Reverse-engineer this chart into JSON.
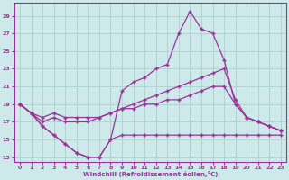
{
  "xlabel": "Windchill (Refroidissement éolien,°C)",
  "xlim": [
    -0.5,
    23.5
  ],
  "ylim": [
    12.5,
    30.5
  ],
  "yticks": [
    13,
    15,
    17,
    19,
    21,
    23,
    25,
    27,
    29
  ],
  "xticks": [
    0,
    1,
    2,
    3,
    4,
    5,
    6,
    7,
    8,
    9,
    10,
    11,
    12,
    13,
    14,
    15,
    16,
    17,
    18,
    19,
    20,
    21,
    22,
    23
  ],
  "bg_color": "#cee9e9",
  "line_color": "#993399",
  "grid_color": "#aacccc",
  "line1_y": [
    19.0,
    18.0,
    16.5,
    15.5,
    14.5,
    13.5,
    13.0,
    13.0,
    15.0,
    20.5,
    21.5,
    22.0,
    23.0,
    23.5,
    27.0,
    29.5,
    27.5,
    27.0,
    24.0,
    19.0,
    17.5,
    17.0,
    16.5,
    16.0
  ],
  "line2_y": [
    19.0,
    18.0,
    17.0,
    17.5,
    17.0,
    17.0,
    17.0,
    17.5,
    18.0,
    18.5,
    19.0,
    19.5,
    20.0,
    20.5,
    21.0,
    21.5,
    22.0,
    22.5,
    23.0,
    19.5,
    17.5,
    17.0,
    16.5,
    16.0
  ],
  "line3_y": [
    19.0,
    18.0,
    17.5,
    18.0,
    17.5,
    17.5,
    17.5,
    17.5,
    18.0,
    18.5,
    18.5,
    19.0,
    19.0,
    19.5,
    19.5,
    20.0,
    20.5,
    21.0,
    21.0,
    19.0,
    17.5,
    17.0,
    16.5,
    16.0
  ],
  "line4_y": [
    19.0,
    18.0,
    16.5,
    15.5,
    14.5,
    13.5,
    13.0,
    13.0,
    15.0,
    15.5,
    15.5,
    15.5,
    15.5,
    15.5,
    15.5,
    15.5,
    15.5,
    15.5,
    15.5,
    15.5,
    15.5,
    15.5,
    15.5,
    15.5
  ]
}
